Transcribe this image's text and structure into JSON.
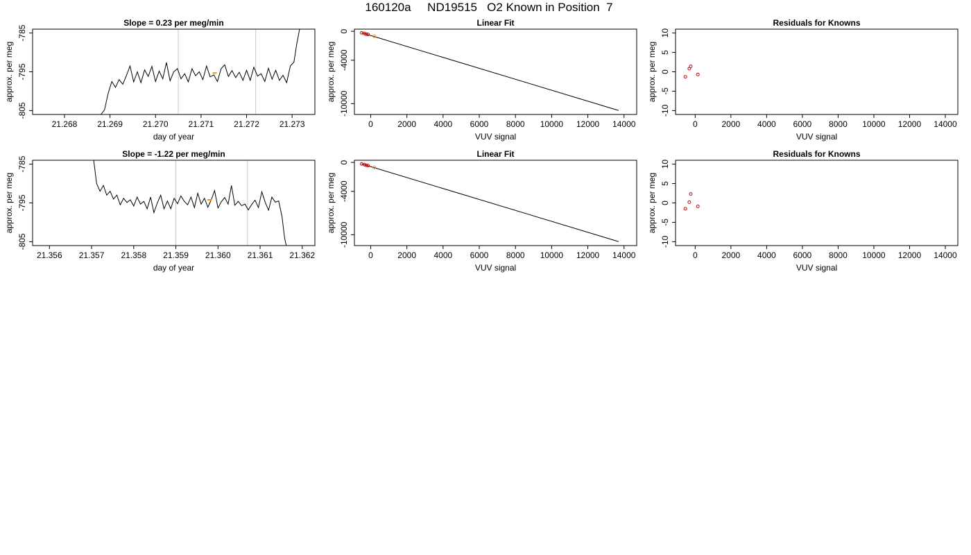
{
  "page": {
    "title": "160120a     ND19515   O2 Known in Position  7"
  },
  "chart_data": [
    {
      "id": "timeseries-top",
      "type": "line",
      "title": "Slope =  0.23  per meg/min",
      "xlabel": "day of year",
      "ylabel": "approx. per meg",
      "xlim": [
        21.2673,
        21.2735
      ],
      "ylim": [
        -806,
        -784
      ],
      "xticks": [
        21.268,
        21.269,
        21.27,
        21.271,
        21.272,
        21.273
      ],
      "xtick_labels": [
        "21.268",
        "21.269",
        "21.270",
        "21.271",
        "21.272",
        "21.273"
      ],
      "yticks": [
        -785,
        -795,
        -805
      ],
      "ytick_labels": [
        "-785",
        "-795",
        "-805"
      ],
      "vlines": [
        21.2705,
        21.2722
      ],
      "highlight": {
        "x": 21.2713,
        "y": -795.3,
        "color": "#ff8c00"
      },
      "series": [
        {
          "x": [
            21.2688,
            21.26888,
            21.26896,
            21.26904,
            21.26912,
            21.2692,
            21.26928,
            21.26936,
            21.26944,
            21.26952,
            21.2696,
            21.26968,
            21.26976,
            21.26984,
            21.26992,
            21.27,
            21.27008,
            21.27016,
            21.27024,
            21.27032,
            21.2704,
            21.27048,
            21.27056,
            21.27064,
            21.27072,
            21.2708,
            21.27088,
            21.27096,
            21.27104,
            21.27112,
            21.2712,
            21.27128,
            21.27136,
            21.27144,
            21.27152,
            21.2716,
            21.27168,
            21.27176,
            21.27184,
            21.27192,
            21.272,
            21.27208,
            21.27216,
            21.27224,
            21.27232,
            21.2724,
            21.27248,
            21.27256,
            21.27264,
            21.27272,
            21.2728,
            21.27288,
            21.27296,
            21.27304,
            21.2731,
            21.27318
          ],
          "y": [
            -806,
            -804.8,
            -800.5,
            -797.5,
            -799,
            -797,
            -798.2,
            -796,
            -793.5,
            -797.6,
            -795,
            -797.8,
            -794.5,
            -796.2,
            -793.6,
            -797.5,
            -794.8,
            -796.8,
            -792.6,
            -797.3,
            -795,
            -794.2,
            -796.8,
            -795.5,
            -797.6,
            -794.2,
            -796,
            -795,
            -797,
            -793.5,
            -796.3,
            -795.8,
            -797.5,
            -794.2,
            -793.2,
            -796.2,
            -794.7,
            -796.5,
            -795.1,
            -797.2,
            -794.6,
            -797.2,
            -793.8,
            -796.1,
            -795.5,
            -797.5,
            -794.1,
            -796.9,
            -794.6,
            -797.2,
            -795.9,
            -797.8,
            -793.5,
            -792.5,
            -788,
            -783
          ]
        }
      ]
    },
    {
      "id": "linear-fit-top",
      "type": "scatter",
      "title": "Linear Fit",
      "xlabel": "VUV signal",
      "ylabel": "approx. per meg",
      "xlim": [
        -900,
        14700
      ],
      "ylim": [
        -11500,
        300
      ],
      "xticks": [
        0,
        2000,
        4000,
        6000,
        8000,
        10000,
        12000,
        14000
      ],
      "xtick_labels": [
        "0",
        "2000",
        "4000",
        "6000",
        "8000",
        "10000",
        "12000",
        "14000"
      ],
      "yticks": [
        0,
        -4000,
        -10000
      ],
      "ytick_labels": [
        "0",
        "-4000",
        "-10000"
      ],
      "fit_line": {
        "x": [
          -500,
          13700
        ],
        "y": [
          -200,
          -10950
        ]
      },
      "points": [
        {
          "x": -500,
          "y": -200,
          "color": "#cc0000"
        },
        {
          "x": -350,
          "y": -300,
          "color": "#cc0000"
        },
        {
          "x": -250,
          "y": -400,
          "color": "#cc0000"
        },
        {
          "x": -150,
          "y": -430,
          "color": "#cc0000"
        },
        {
          "x": 200,
          "y": -680,
          "color": "#ff8c00"
        }
      ]
    },
    {
      "id": "residuals-top",
      "type": "scatter",
      "title": "Residuals for Knowns",
      "xlabel": "VUV signal",
      "ylabel": "approx. per meg",
      "xlim": [
        -1100,
        14700
      ],
      "ylim": [
        -11,
        11
      ],
      "xticks": [
        0,
        2000,
        4000,
        6000,
        8000,
        10000,
        12000,
        14000
      ],
      "xtick_labels": [
        "0",
        "2000",
        "4000",
        "6000",
        "8000",
        "10000",
        "12000",
        "14000"
      ],
      "yticks": [
        10,
        5,
        0,
        -5,
        -10
      ],
      "ytick_labels": [
        "10",
        "5",
        "0",
        "-5",
        "-10"
      ],
      "points": [
        {
          "x": -550,
          "y": -1.3,
          "color": "#cc0000"
        },
        {
          "x": -330,
          "y": 0.8,
          "color": "#cc0000"
        },
        {
          "x": -250,
          "y": 1.4,
          "color": "#cc0000"
        },
        {
          "x": 150,
          "y": -0.7,
          "color": "#cc0000"
        }
      ]
    },
    {
      "id": "timeseries-bottom",
      "type": "line",
      "title": "Slope =  -1.22  per meg/min",
      "xlabel": "day of year",
      "ylabel": "approx. per meg",
      "xlim": [
        21.3556,
        21.3623
      ],
      "ylim": [
        -806,
        -784
      ],
      "xticks": [
        21.356,
        21.357,
        21.358,
        21.359,
        21.36,
        21.361,
        21.362
      ],
      "xtick_labels": [
        "21.356",
        "21.357",
        "21.358",
        "21.359",
        "21.360",
        "21.361",
        "21.362"
      ],
      "yticks": [
        -785,
        -795,
        -805
      ],
      "ytick_labels": [
        "-785",
        "-795",
        "-805"
      ],
      "vlines": [
        21.359,
        21.3607
      ],
      "highlight": {
        "x": 21.3598,
        "y": -794.2,
        "color": "#ff8c00"
      },
      "series": [
        {
          "x": [
            21.35705,
            21.35712,
            21.3572,
            21.35728,
            21.35736,
            21.35744,
            21.35752,
            21.3576,
            21.35768,
            21.35776,
            21.35784,
            21.35792,
            21.358,
            21.35808,
            21.35816,
            21.35824,
            21.35832,
            21.3584,
            21.35848,
            21.35856,
            21.35864,
            21.35872,
            21.3588,
            21.35888,
            21.35896,
            21.35904,
            21.35912,
            21.3592,
            21.35928,
            21.35936,
            21.35944,
            21.35952,
            21.3596,
            21.35968,
            21.35976,
            21.35984,
            21.35992,
            21.36,
            21.36008,
            21.36016,
            21.36024,
            21.36032,
            21.3604,
            21.36048,
            21.36056,
            21.36064,
            21.36072,
            21.3608,
            21.36088,
            21.36096,
            21.36104,
            21.36112,
            21.3612,
            21.36128,
            21.36136,
            21.36144,
            21.36152,
            21.36158,
            21.36162
          ],
          "y": [
            -784,
            -790,
            -792,
            -790.5,
            -793,
            -792,
            -794,
            -793,
            -795.5,
            -793.8,
            -794.9,
            -794.2,
            -795.8,
            -793.5,
            -795.3,
            -794.6,
            -796.5,
            -793.5,
            -797.5,
            -795,
            -793,
            -796.5,
            -794.5,
            -796.5,
            -793.8,
            -795.2,
            -793.2,
            -794.6,
            -795.5,
            -793.5,
            -796.2,
            -792.5,
            -795.3,
            -793.8,
            -796.1,
            -794.2,
            -791.8,
            -796.3,
            -794.7,
            -793.6,
            -795.3,
            -790.5,
            -795.6,
            -794.6,
            -795.7,
            -795.3,
            -796.8,
            -795.4,
            -794.3,
            -796.2,
            -792.1,
            -794.8,
            -796.9,
            -793.5,
            -794.8,
            -794.5,
            -798.5,
            -804,
            -806
          ]
        }
      ]
    },
    {
      "id": "linear-fit-bottom",
      "type": "scatter",
      "title": "Linear Fit",
      "xlabel": "VUV signal",
      "ylabel": "approx. per meg",
      "xlim": [
        -900,
        14700
      ],
      "ylim": [
        -11500,
        300
      ],
      "xticks": [
        0,
        2000,
        4000,
        6000,
        8000,
        10000,
        12000,
        14000
      ],
      "xtick_labels": [
        "0",
        "2000",
        "4000",
        "6000",
        "8000",
        "10000",
        "12000",
        "14000"
      ],
      "yticks": [
        0,
        -4000,
        -10000
      ],
      "ytick_labels": [
        "0",
        "-4000",
        "-10000"
      ],
      "fit_line": {
        "x": [
          -500,
          13700
        ],
        "y": [
          -200,
          -10950
        ]
      },
      "points": [
        {
          "x": -500,
          "y": -200,
          "color": "#cc0000"
        },
        {
          "x": -350,
          "y": -300,
          "color": "#cc0000"
        },
        {
          "x": -250,
          "y": -400,
          "color": "#cc0000"
        },
        {
          "x": -150,
          "y": -430,
          "color": "#cc0000"
        },
        {
          "x": 200,
          "y": -680,
          "color": "#ff8c00"
        }
      ]
    },
    {
      "id": "residuals-bottom",
      "type": "scatter",
      "title": "Residuals for Knowns",
      "xlabel": "VUV signal",
      "ylabel": "approx. per meg",
      "xlim": [
        -1100,
        14700
      ],
      "ylim": [
        -11,
        11
      ],
      "xticks": [
        0,
        2000,
        4000,
        6000,
        8000,
        10000,
        12000,
        14000
      ],
      "xtick_labels": [
        "0",
        "2000",
        "4000",
        "6000",
        "8000",
        "10000",
        "12000",
        "14000"
      ],
      "yticks": [
        10,
        5,
        0,
        -5,
        -10
      ],
      "ytick_labels": [
        "10",
        "5",
        "0",
        "-5",
        "-10"
      ],
      "points": [
        {
          "x": -550,
          "y": -1.5,
          "color": "#cc0000"
        },
        {
          "x": -330,
          "y": 0.2,
          "color": "#cc0000"
        },
        {
          "x": -250,
          "y": 2.3,
          "color": "#cc0000"
        },
        {
          "x": 150,
          "y": -0.9,
          "color": "#cc0000"
        }
      ]
    }
  ]
}
